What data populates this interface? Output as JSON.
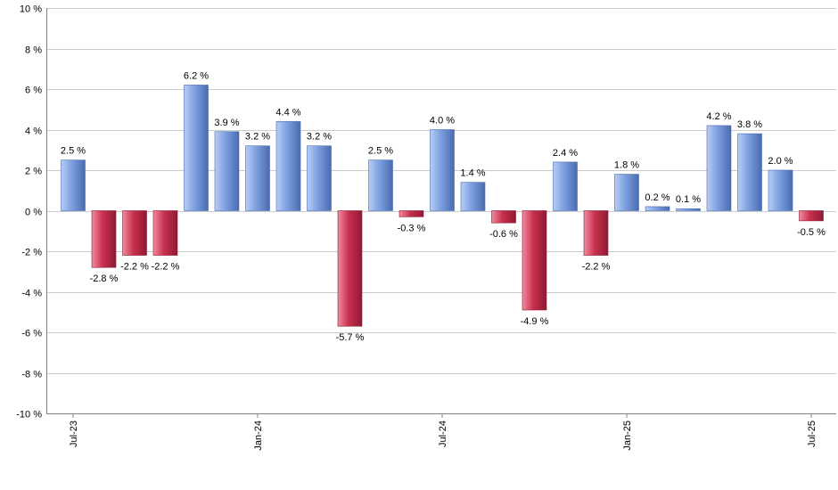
{
  "chart_data": {
    "type": "bar",
    "title": "",
    "xlabel": "",
    "ylabel": "",
    "ylim": [
      -10,
      10
    ],
    "y_ticks": [
      10,
      8,
      6,
      4,
      2,
      0,
      -2,
      -4,
      -6,
      -8,
      -10
    ],
    "y_tick_labels": [
      "10 %",
      "8 %",
      "6 %",
      "4 %",
      "2 %",
      "0 %",
      "-2 %",
      "-4 %",
      "-6 %",
      "-8 %",
      "-10 %"
    ],
    "x_tick_labels": [
      {
        "index": 0,
        "label": "Jul-23"
      },
      {
        "index": 6,
        "label": "Jan-24"
      },
      {
        "index": 12,
        "label": "Jul-24"
      },
      {
        "index": 18,
        "label": "Jan-25"
      },
      {
        "index": 24,
        "label": "Jul-25"
      }
    ],
    "categories": [
      "Jul-23",
      "Aug-23",
      "Sep-23",
      "Oct-23",
      "Nov-23",
      "Dec-23",
      "Jan-24",
      "Feb-24",
      "Mar-24",
      "Apr-24",
      "May-24",
      "Jun-24",
      "Jul-24",
      "Aug-24",
      "Sep-24",
      "Oct-24",
      "Nov-24",
      "Dec-24",
      "Jan-25",
      "Feb-25",
      "Mar-25",
      "Apr-25",
      "May-25",
      "Jun-25",
      "Jul-25"
    ],
    "values": [
      2.5,
      -2.8,
      -2.2,
      -2.2,
      6.2,
      3.9,
      3.2,
      4.4,
      3.2,
      -5.7,
      2.5,
      -0.3,
      4.0,
      1.4,
      -0.6,
      -4.9,
      2.4,
      -2.2,
      1.8,
      0.2,
      0.1,
      4.2,
      3.8,
      2.0,
      -0.5
    ],
    "labels": [
      "2.5 %",
      "-2.8 %",
      "-2.2 %",
      "-2.2 %",
      "6.2 %",
      "3.9 %",
      "3.2 %",
      "4.4 %",
      "3.2 %",
      "-5.7 %",
      "2.5 %",
      "-0.3 %",
      "4.0 %",
      "1.4 %",
      "-0.6 %",
      "-4.9 %",
      "2.4 %",
      "-2.2 %",
      "1.8 %",
      "0.2 %",
      "0.1 %",
      "4.2 %",
      "3.8 %",
      "2.0 %",
      "-0.5 %"
    ],
    "grid": true,
    "legend": "none",
    "colors": {
      "positive": "#7b9fe0",
      "positive_light": "#b8cdf5",
      "positive_dark": "#4a6bb0",
      "negative": "#c8304e",
      "negative_light": "#f08ca0",
      "negative_dark": "#8e1a33",
      "grid": "#cccccc",
      "axis": "#808080"
    }
  }
}
